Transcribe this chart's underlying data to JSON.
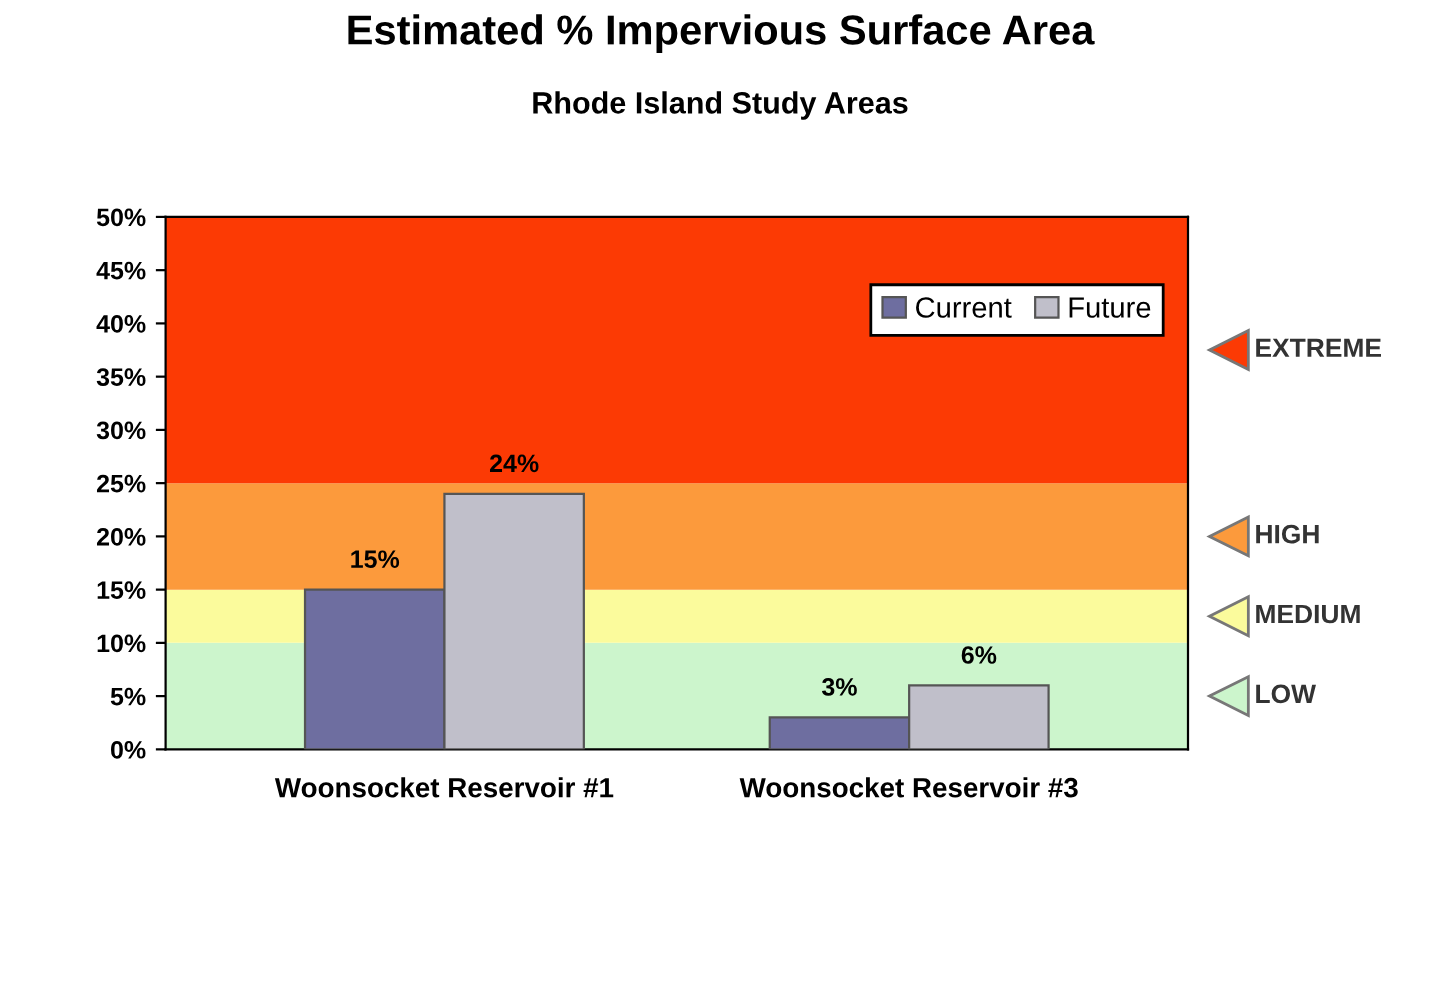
{
  "chart_data": {
    "type": "bar",
    "title": "Estimated % Impervious Surface Area",
    "subtitle": "Rhode Island Study Areas",
    "categories": [
      "Woonsocket Reservoir #1",
      "Woonsocket Reservoir #3"
    ],
    "series": [
      {
        "name": "Current",
        "color": "#6e6ea0",
        "values": [
          15,
          3
        ],
        "value_labels": [
          "15%",
          "3%"
        ]
      },
      {
        "name": "Future",
        "color": "#c0bfca",
        "values": [
          24,
          6
        ],
        "value_labels": [
          "24%",
          "6%"
        ]
      }
    ],
    "ylim": [
      0,
      50
    ],
    "yticks": [
      {
        "value": 0,
        "label": "0%"
      },
      {
        "value": 5,
        "label": "5%"
      },
      {
        "value": 10,
        "label": "10%"
      },
      {
        "value": 15,
        "label": "15%"
      },
      {
        "value": 20,
        "label": "20%"
      },
      {
        "value": 25,
        "label": "25%"
      },
      {
        "value": 30,
        "label": "30%"
      },
      {
        "value": 35,
        "label": "35%"
      },
      {
        "value": 40,
        "label": "40%"
      },
      {
        "value": 45,
        "label": "45%"
      },
      {
        "value": 50,
        "label": "50%"
      }
    ],
    "bands": [
      {
        "axis": "y",
        "from": 0,
        "to": 10,
        "label": "LOW",
        "color": "#ccf5cc"
      },
      {
        "axis": "y",
        "from": 10,
        "to": 15,
        "label": "MEDIUM",
        "color": "#fbfb9c"
      },
      {
        "axis": "y",
        "from": 15,
        "to": 25,
        "label": "HIGH",
        "color": "#fc9a3c"
      },
      {
        "axis": "y",
        "from": 25,
        "to": 50,
        "label": "EXTREME",
        "color": "#fc3a04"
      }
    ],
    "legend": "top right",
    "grid": false
  }
}
